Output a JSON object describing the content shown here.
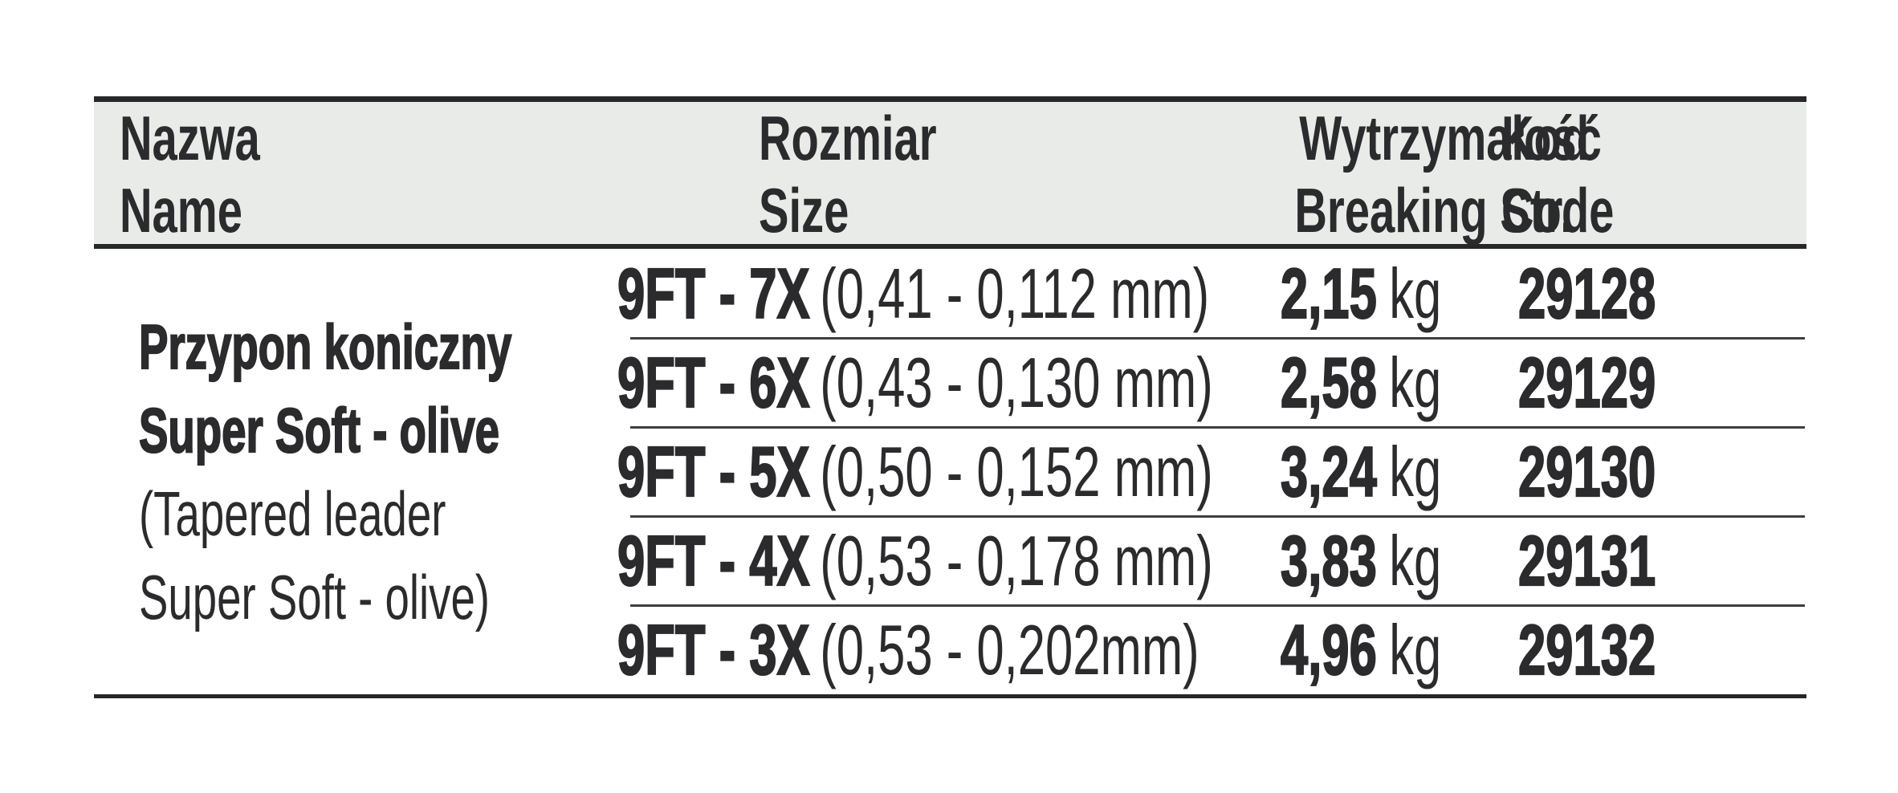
{
  "colors": {
    "page_bg": "#ffffff",
    "text": "#2b2b2d",
    "header_bg": "#e9ebe9",
    "border": "#27272a",
    "separator": "#3e3e41"
  },
  "table": {
    "headers": {
      "name_pl": "Nazwa",
      "name_en": "Name",
      "size_pl": "Rozmiar",
      "size_en": "Size",
      "strength_pl": "Wytrzymałość",
      "strength_en": "Breaking Str.",
      "code_pl": "Kod",
      "code_en": "Code"
    },
    "product_name": {
      "pl_line1": "Przypon koniczny",
      "pl_line2": "Super Soft - olive",
      "en_line1": "(Tapered leader",
      "en_line2": "Super Soft - olive)"
    },
    "rows": [
      {
        "size": "9FT - 7X",
        "size_detail": "(0,41 - 0,112 mm)",
        "strength_value": "2,15",
        "strength_unit": "kg",
        "code": "29128"
      },
      {
        "size": "9FT - 6X",
        "size_detail": "(0,43 - 0,130 mm)",
        "strength_value": "2,58",
        "strength_unit": "kg",
        "code": "29129"
      },
      {
        "size": "9FT - 5X",
        "size_detail": "(0,50 - 0,152 mm)",
        "strength_value": "3,24",
        "strength_unit": "kg",
        "code": "29130"
      },
      {
        "size": "9FT - 4X",
        "size_detail": "(0,53 - 0,178 mm)",
        "strength_value": "3,83",
        "strength_unit": "kg",
        "code": "29131"
      },
      {
        "size": "9FT - 3X",
        "size_detail": "(0,53 - 0,202mm)",
        "strength_value": "4,96",
        "strength_unit": "kg",
        "code": "29132"
      }
    ]
  }
}
